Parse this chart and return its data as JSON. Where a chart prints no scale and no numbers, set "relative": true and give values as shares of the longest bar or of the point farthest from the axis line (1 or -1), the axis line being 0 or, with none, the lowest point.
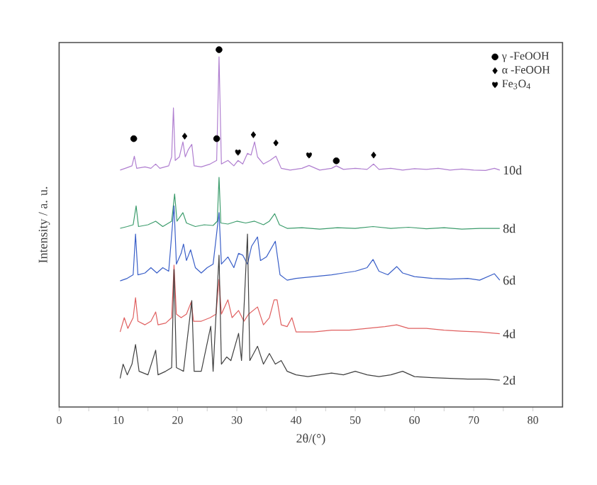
{
  "chart_data": {
    "type": "line",
    "relative": true,
    "xlabel": "2θ/(°)",
    "ylabel": "Intensity / a. u.",
    "xlim": [
      0,
      85
    ],
    "xticks": [
      0,
      {
        "value": 5,
        "label": null
      },
      10,
      {
        "value": 15,
        "label": null
      },
      20,
      {
        "value": 25,
        "label": null
      },
      30,
      {
        "value": 35,
        "label": null
      },
      40,
      {
        "value": 45,
        "label": null
      },
      50,
      {
        "value": 55,
        "label": null
      },
      60,
      {
        "value": 65,
        "label": null
      },
      70,
      {
        "value": 75,
        "label": null
      },
      80
    ],
    "legend": "top right",
    "grid": false,
    "series": [
      {
        "name": "10d",
        "marker": "none",
        "color": "#b07fd0",
        "x": [
          10.3,
          11.5,
          12.3,
          12.7,
          13.1,
          14.5,
          15.5,
          16.3,
          17,
          18.5,
          19.0,
          19.3,
          19.6,
          20.3,
          20.9,
          21.3,
          21.8,
          22.4,
          22.8,
          24,
          25.5,
          26.6,
          27.0,
          27.4,
          28.5,
          29.5,
          30.2,
          31,
          31.8,
          32.4,
          33.0,
          33.5,
          34.5,
          35.6,
          36.6,
          37.5,
          39,
          41,
          42.2,
          44,
          46,
          46.8,
          48,
          50,
          52,
          53.1,
          54,
          56,
          58,
          60,
          62,
          64,
          66,
          68,
          70,
          72,
          73.5,
          74.4
        ],
        "values": [
          0.663,
          0.67,
          0.675,
          0.702,
          0.668,
          0.672,
          0.668,
          0.68,
          0.668,
          0.675,
          0.7,
          0.837,
          0.69,
          0.7,
          0.742,
          0.7,
          0.72,
          0.735,
          0.675,
          0.672,
          0.68,
          0.69,
          0.98,
          0.68,
          0.69,
          0.675,
          0.69,
          0.68,
          0.71,
          0.705,
          0.742,
          0.7,
          0.68,
          0.69,
          0.702,
          0.668,
          0.663,
          0.668,
          0.676,
          0.663,
          0.668,
          0.675,
          0.665,
          0.668,
          0.665,
          0.68,
          0.665,
          0.668,
          0.663,
          0.667,
          0.665,
          0.668,
          0.663,
          0.666,
          0.663,
          0.662,
          0.668,
          0.663
        ]
      },
      {
        "name": "8d",
        "marker": "none",
        "color": "#3c9c6c",
        "x": [
          10.3,
          11.5,
          12.5,
          13.0,
          13.4,
          15,
          16.3,
          17.5,
          19.0,
          19.5,
          19.9,
          20.9,
          21.5,
          23,
          24.5,
          26,
          26.7,
          27.0,
          27.3,
          28.5,
          30,
          31.5,
          33,
          34.5,
          35.5,
          36.4,
          37.2,
          38.5,
          41,
          44,
          47,
          50,
          53,
          56,
          59,
          62,
          65,
          68,
          71,
          74.4
        ],
        "values": [
          0.5,
          0.505,
          0.51,
          0.563,
          0.505,
          0.51,
          0.52,
          0.505,
          0.52,
          0.596,
          0.52,
          0.544,
          0.515,
          0.505,
          0.51,
          0.508,
          0.52,
          0.643,
          0.515,
          0.512,
          0.52,
          0.515,
          0.52,
          0.51,
          0.52,
          0.541,
          0.51,
          0.5,
          0.502,
          0.498,
          0.502,
          0.5,
          0.505,
          0.5,
          0.503,
          0.499,
          0.502,
          0.498,
          0.5,
          0.5
        ]
      },
      {
        "name": "6d",
        "marker": "none",
        "color": "#3a5fc8",
        "x": [
          10.3,
          11.5,
          12.5,
          12.9,
          13.3,
          14.5,
          15.5,
          16.5,
          17.5,
          18.5,
          19.4,
          19.8,
          20.6,
          21.0,
          21.5,
          22.2,
          23,
          24,
          25,
          26,
          27.0,
          27.4,
          28.5,
          29.5,
          30.3,
          31.0,
          31.8,
          32.5,
          33.5,
          34,
          35,
          36.5,
          37.3,
          38.5,
          40,
          43,
          46,
          48,
          50,
          52,
          53.0,
          54,
          55.5,
          57,
          58,
          60,
          63,
          66,
          69,
          71,
          73.5,
          74.4
        ],
        "values": [
          0.353,
          0.36,
          0.37,
          0.484,
          0.37,
          0.375,
          0.39,
          0.375,
          0.39,
          0.38,
          0.563,
          0.4,
          0.43,
          0.456,
          0.41,
          0.44,
          0.39,
          0.375,
          0.39,
          0.4,
          0.544,
          0.4,
          0.42,
          0.39,
          0.43,
          0.425,
          0.4,
          0.45,
          0.476,
          0.41,
          0.42,
          0.464,
          0.37,
          0.355,
          0.36,
          0.365,
          0.37,
          0.375,
          0.38,
          0.39,
          0.413,
          0.38,
          0.37,
          0.393,
          0.375,
          0.365,
          0.36,
          0.358,
          0.36,
          0.355,
          0.373,
          0.355
        ]
      },
      {
        "name": "4d",
        "marker": "none",
        "color": "#e06060",
        "x": [
          10.3,
          11.0,
          11.6,
          12.5,
          12.9,
          13.3,
          14.5,
          15.5,
          16.3,
          16.7,
          18,
          19.0,
          19.4,
          19.8,
          20.6,
          21.5,
          22.3,
          22.7,
          24,
          25.5,
          26.5,
          27.0,
          27.4,
          28.5,
          29.2,
          30.3,
          31.2,
          32,
          33.5,
          34.5,
          35.5,
          36.3,
          36.8,
          37.5,
          38.5,
          39.3,
          40,
          43,
          46,
          49,
          52,
          55,
          57,
          59,
          62,
          65,
          68,
          71,
          74.4
        ],
        "values": [
          0.21,
          0.25,
          0.22,
          0.25,
          0.306,
          0.24,
          0.23,
          0.24,
          0.266,
          0.23,
          0.235,
          0.25,
          0.397,
          0.26,
          0.25,
          0.26,
          0.294,
          0.24,
          0.24,
          0.25,
          0.26,
          0.357,
          0.26,
          0.3,
          0.25,
          0.27,
          0.24,
          0.26,
          0.28,
          0.23,
          0.25,
          0.3,
          0.3,
          0.23,
          0.225,
          0.25,
          0.21,
          0.21,
          0.215,
          0.215,
          0.22,
          0.225,
          0.23,
          0.22,
          0.22,
          0.215,
          0.212,
          0.21,
          0.205
        ]
      },
      {
        "name": "2d",
        "marker": "none",
        "color": "#404040",
        "x": [
          10.3,
          10.8,
          11.5,
          12.3,
          12.9,
          13.5,
          15,
          16.3,
          16.7,
          18,
          19.0,
          19.4,
          19.8,
          21,
          22.4,
          22.8,
          24,
          25.6,
          26,
          27.0,
          27.4,
          28.3,
          29,
          30.3,
          30.8,
          31.8,
          32.2,
          33.5,
          34.5,
          35.5,
          36.5,
          37.5,
          38.5,
          40,
          42,
          44,
          46,
          48,
          50,
          52,
          54,
          56,
          58,
          60,
          63,
          66,
          69,
          72,
          74.4
        ],
        "values": [
          0.08,
          0.12,
          0.09,
          0.12,
          0.175,
          0.1,
          0.09,
          0.159,
          0.09,
          0.1,
          0.11,
          0.385,
          0.11,
          0.1,
          0.298,
          0.1,
          0.1,
          0.226,
          0.1,
          0.425,
          0.12,
          0.14,
          0.13,
          0.206,
          0.13,
          0.484,
          0.13,
          0.17,
          0.12,
          0.15,
          0.12,
          0.13,
          0.1,
          0.09,
          0.085,
          0.09,
          0.095,
          0.09,
          0.1,
          0.09,
          0.085,
          0.09,
          0.1,
          0.085,
          0.082,
          0.08,
          0.078,
          0.078,
          0.075
        ]
      },
      {
        "name": "γ -FeOOH",
        "type": "scatter",
        "marker": "circle",
        "color": "#000000",
        "x": [
          12.6,
          26.6,
          27.0,
          46.8
        ],
        "values": [
          0.751,
          0.751,
          1.0,
          0.689
        ]
      },
      {
        "name": "α -FeOOH",
        "type": "scatter",
        "marker": "diamond",
        "color": "#000000",
        "x": [
          21.2,
          32.8,
          36.6,
          53.1
        ],
        "values": [
          0.758,
          0.762,
          0.739,
          0.705
        ]
      },
      {
        "name": "Fe$_{3}$O$_{4}$",
        "type": "scatter",
        "color": "#000000",
        "x": [
          30.2,
          42.2
        ],
        "values": [
          0.713,
          0.705
        ]
      }
    ]
  }
}
